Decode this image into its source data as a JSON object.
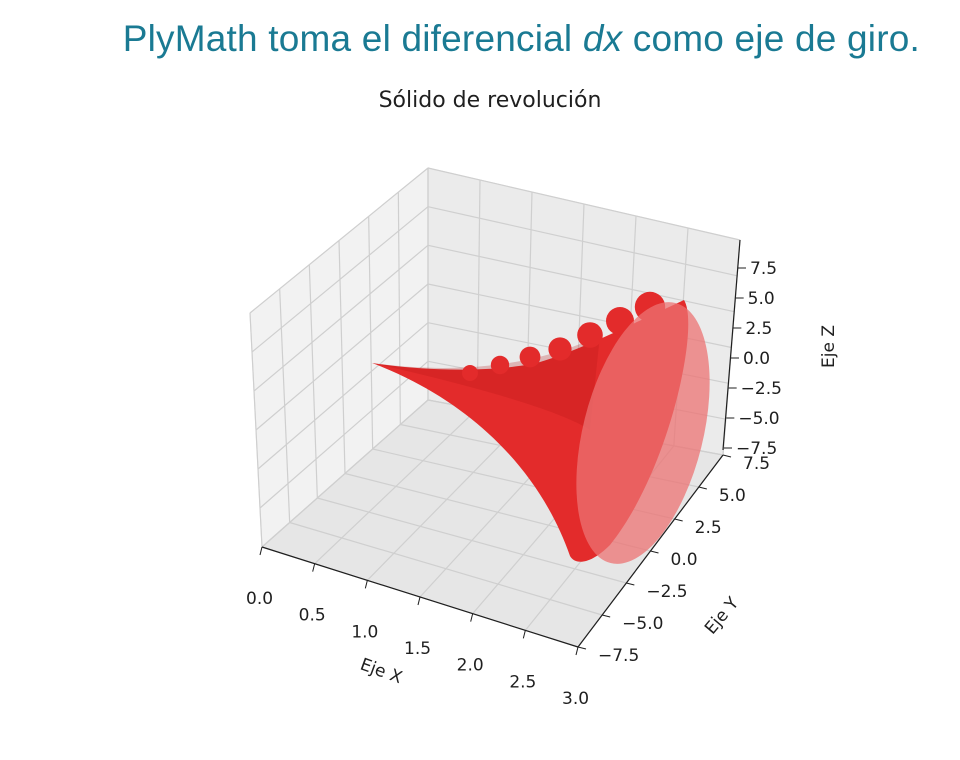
{
  "slide": {
    "headline_part1": "PlyMath toma el diferencial ",
    "headline_em": "dx",
    "headline_part2": " como eje de giro."
  },
  "chart_data": {
    "type": "surface3d",
    "title": "Sólido de revolución",
    "xlabel": "Eje X",
    "ylabel": "Eje Y",
    "zlabel": "Eje Z",
    "x_ticks": [
      "0.0",
      "0.5",
      "1.0",
      "1.5",
      "2.0",
      "2.5",
      "3.0"
    ],
    "y_ticks": [
      "7.5",
      "5.0",
      "2.5",
      "0.0",
      "−2.5",
      "−5.0",
      "−7.5"
    ],
    "z_ticks": [
      "7.5",
      "5.0",
      "2.5",
      "0.0",
      "−2.5",
      "−5.0",
      "−7.5"
    ],
    "xlim": [
      0,
      3
    ],
    "ylim": [
      -7.5,
      7.5
    ],
    "zlim": [
      -7.5,
      7.5
    ],
    "surface_color": "#e32b2b",
    "cap_color": "#ec7373",
    "grid": true
  }
}
